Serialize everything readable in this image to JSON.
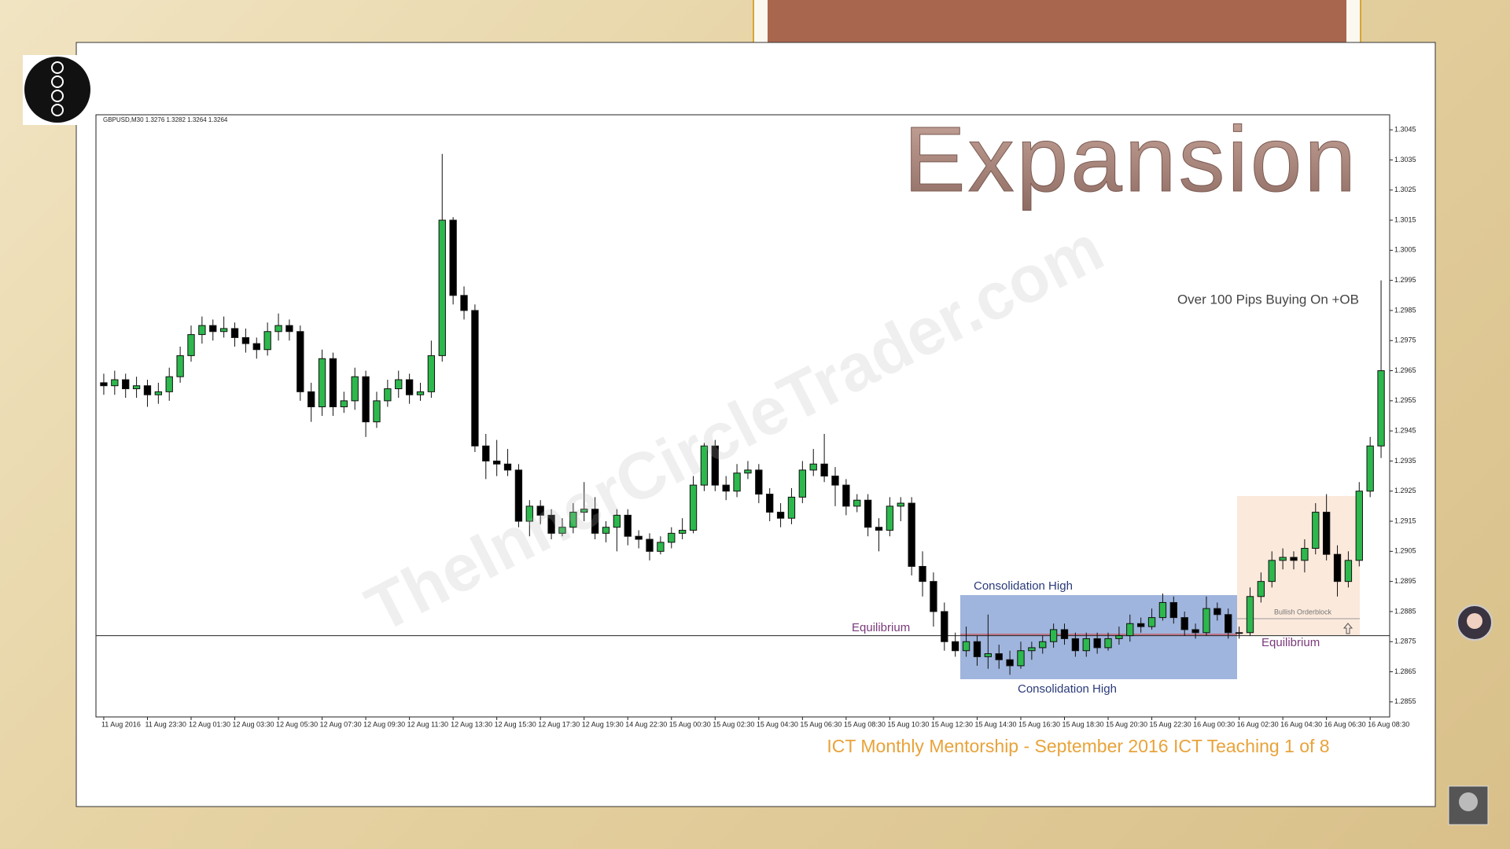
{
  "chart_data": {
    "type": "candlestick",
    "title": "Expansion",
    "symbol_info": "GBPUSD,M30  1.3276 1.3282 1.3264 1.3264",
    "note": "Over 100 Pips Buying On +OB",
    "watermark": "TheInnerCircleTrader.com",
    "caption": "ICT Monthly Mentorship - September 2016 ICT Teaching 1 of 8",
    "labels": {
      "equilibrium_left": "Equilibrium",
      "equilibrium_right": "Equilibrium",
      "consolidation_top": "Consolidation High",
      "consolidation_bottom": "Consolidation High",
      "orderblock": "Bullish Orderblock"
    },
    "equilibrium": 1.2877,
    "up_color": "#2db84d",
    "down_color": "#000000",
    "ylim": [
      1.285,
      1.305
    ],
    "yticks": [
      1.2855,
      1.2865,
      1.2875,
      1.2885,
      1.2895,
      1.2905,
      1.2915,
      1.2925,
      1.2935,
      1.2945,
      1.2955,
      1.2965,
      1.2975,
      1.2985,
      1.2995,
      1.3005,
      1.3015,
      1.3025,
      1.3035,
      1.3045
    ],
    "x_labels": [
      "11 Aug 2016",
      "11 Aug 23:30",
      "12 Aug 01:30",
      "12 Aug 03:30",
      "12 Aug 05:30",
      "12 Aug 07:30",
      "12 Aug 09:30",
      "12 Aug 11:30",
      "12 Aug 13:30",
      "12 Aug 15:30",
      "12 Aug 17:30",
      "12 Aug 19:30",
      "14 Aug 22:30",
      "15 Aug 00:30",
      "15 Aug 02:30",
      "15 Aug 04:30",
      "15 Aug 06:30",
      "15 Aug 08:30",
      "15 Aug 10:30",
      "15 Aug 12:30",
      "15 Aug 14:30",
      "15 Aug 16:30",
      "15 Aug 18:30",
      "15 Aug 20:30",
      "15 Aug 22:30",
      "16 Aug 00:30",
      "16 Aug 02:30",
      "16 Aug 04:30",
      "16 Aug 06:30",
      "16 Aug 08:30"
    ],
    "candles": [
      [
        1.2961,
        1.2964,
        1.2957,
        1.296
      ],
      [
        1.296,
        1.2965,
        1.2957,
        1.2962
      ],
      [
        1.2962,
        1.2964,
        1.2956,
        1.2959
      ],
      [
        1.2959,
        1.2963,
        1.2956,
        1.296
      ],
      [
        1.296,
        1.2962,
        1.2953,
        1.2957
      ],
      [
        1.2957,
        1.2961,
        1.2954,
        1.2958
      ],
      [
        1.2958,
        1.2966,
        1.2955,
        1.2963
      ],
      [
        1.2963,
        1.2973,
        1.2961,
        1.297
      ],
      [
        1.297,
        1.298,
        1.2968,
        1.2977
      ],
      [
        1.2977,
        1.2983,
        1.2974,
        1.298
      ],
      [
        1.298,
        1.2982,
        1.2975,
        1.2978
      ],
      [
        1.2978,
        1.2983,
        1.2976,
        1.2979
      ],
      [
        1.2979,
        1.2981,
        1.2973,
        1.2976
      ],
      [
        1.2976,
        1.2979,
        1.2971,
        1.2974
      ],
      [
        1.2974,
        1.2976,
        1.2969,
        1.2972
      ],
      [
        1.2972,
        1.2981,
        1.297,
        1.2978
      ],
      [
        1.2978,
        1.2984,
        1.2975,
        1.298
      ],
      [
        1.298,
        1.2982,
        1.2975,
        1.2978
      ],
      [
        1.2978,
        1.298,
        1.2955,
        1.2958
      ],
      [
        1.2958,
        1.2961,
        1.2948,
        1.2953
      ],
      [
        1.2953,
        1.2972,
        1.295,
        1.2969
      ],
      [
        1.2969,
        1.2971,
        1.295,
        1.2953
      ],
      [
        1.2953,
        1.2958,
        1.2951,
        1.2955
      ],
      [
        1.2955,
        1.2966,
        1.2952,
        1.2963
      ],
      [
        1.2963,
        1.2965,
        1.2943,
        1.2948
      ],
      [
        1.2948,
        1.2958,
        1.2946,
        1.2955
      ],
      [
        1.2955,
        1.2962,
        1.2953,
        1.2959
      ],
      [
        1.2959,
        1.2965,
        1.2956,
        1.2962
      ],
      [
        1.2962,
        1.2964,
        1.2954,
        1.2957
      ],
      [
        1.2957,
        1.2961,
        1.2955,
        1.2958
      ],
      [
        1.2958,
        1.2975,
        1.2956,
        1.297
      ],
      [
        1.297,
        1.3037,
        1.2968,
        1.3015
      ],
      [
        1.3015,
        1.3016,
        1.2987,
        1.299
      ],
      [
        1.299,
        1.2993,
        1.2982,
        1.2985
      ],
      [
        1.2985,
        1.2987,
        1.2938,
        1.294
      ],
      [
        1.294,
        1.2944,
        1.2929,
        1.2935
      ],
      [
        1.2935,
        1.2942,
        1.293,
        1.2934
      ],
      [
        1.2934,
        1.2939,
        1.293,
        1.2932
      ],
      [
        1.2932,
        1.2934,
        1.2913,
        1.2915
      ],
      [
        1.2915,
        1.2922,
        1.291,
        1.292
      ],
      [
        1.292,
        1.2922,
        1.2914,
        1.2917
      ],
      [
        1.2917,
        1.2919,
        1.2909,
        1.2911
      ],
      [
        1.2911,
        1.2916,
        1.291,
        1.2913
      ],
      [
        1.2913,
        1.2921,
        1.2911,
        1.2918
      ],
      [
        1.2918,
        1.2928,
        1.2915,
        1.2919
      ],
      [
        1.2919,
        1.2923,
        1.2909,
        1.2911
      ],
      [
        1.2911,
        1.2915,
        1.2908,
        1.2913
      ],
      [
        1.2913,
        1.2919,
        1.2905,
        1.2917
      ],
      [
        1.2917,
        1.2919,
        1.2907,
        1.291
      ],
      [
        1.291,
        1.2912,
        1.2906,
        1.2909
      ],
      [
        1.2909,
        1.2911,
        1.2902,
        1.2905
      ],
      [
        1.2905,
        1.291,
        1.2904,
        1.2908
      ],
      [
        1.2908,
        1.2913,
        1.2906,
        1.2911
      ],
      [
        1.2911,
        1.2916,
        1.2909,
        1.2912
      ],
      [
        1.2912,
        1.293,
        1.2911,
        1.2927
      ],
      [
        1.2927,
        1.2941,
        1.2925,
        1.294
      ],
      [
        1.294,
        1.2942,
        1.2925,
        1.2927
      ],
      [
        1.2927,
        1.293,
        1.2922,
        1.2925
      ],
      [
        1.2925,
        1.2934,
        1.2923,
        1.2931
      ],
      [
        1.2931,
        1.2935,
        1.2929,
        1.2932
      ],
      [
        1.2932,
        1.2934,
        1.2921,
        1.2924
      ],
      [
        1.2924,
        1.2926,
        1.2915,
        1.2918
      ],
      [
        1.2918,
        1.2921,
        1.2913,
        1.2916
      ],
      [
        1.2916,
        1.2926,
        1.2914,
        1.2923
      ],
      [
        1.2923,
        1.2935,
        1.2921,
        1.2932
      ],
      [
        1.2932,
        1.2939,
        1.293,
        1.2934
      ],
      [
        1.2934,
        1.2944,
        1.2928,
        1.293
      ],
      [
        1.293,
        1.2933,
        1.292,
        1.2927
      ],
      [
        1.2927,
        1.2929,
        1.2917,
        1.292
      ],
      [
        1.292,
        1.2924,
        1.2918,
        1.2922
      ],
      [
        1.2922,
        1.2924,
        1.291,
        1.2913
      ],
      [
        1.2913,
        1.2916,
        1.2905,
        1.2912
      ],
      [
        1.2912,
        1.2923,
        1.291,
        1.292
      ],
      [
        1.292,
        1.2923,
        1.2915,
        1.2921
      ],
      [
        1.2921,
        1.2923,
        1.2897,
        1.29
      ],
      [
        1.29,
        1.2905,
        1.289,
        1.2895
      ],
      [
        1.2895,
        1.2898,
        1.288,
        1.2885
      ],
      [
        1.2885,
        1.2888,
        1.2872,
        1.2875
      ],
      [
        1.2875,
        1.2878,
        1.287,
        1.2872
      ],
      [
        1.2872,
        1.288,
        1.287,
        1.2875
      ],
      [
        1.2875,
        1.2877,
        1.2867,
        1.287
      ],
      [
        1.287,
        1.2884,
        1.2866,
        1.2871
      ],
      [
        1.2871,
        1.2874,
        1.2866,
        1.2869
      ],
      [
        1.2869,
        1.2872,
        1.2864,
        1.2867
      ],
      [
        1.2867,
        1.2875,
        1.2866,
        1.2872
      ],
      [
        1.2872,
        1.2875,
        1.2869,
        1.2873
      ],
      [
        1.2873,
        1.2877,
        1.2871,
        1.2875
      ],
      [
        1.2875,
        1.2881,
        1.2873,
        1.2879
      ],
      [
        1.2879,
        1.2881,
        1.2874,
        1.2876
      ],
      [
        1.2876,
        1.2878,
        1.287,
        1.2872
      ],
      [
        1.2872,
        1.2878,
        1.287,
        1.2876
      ],
      [
        1.2876,
        1.2878,
        1.2871,
        1.2873
      ],
      [
        1.2873,
        1.2878,
        1.2872,
        1.2876
      ],
      [
        1.2876,
        1.288,
        1.2874,
        1.2877
      ],
      [
        1.2877,
        1.2884,
        1.2875,
        1.2881
      ],
      [
        1.2881,
        1.2883,
        1.2878,
        1.288
      ],
      [
        1.288,
        1.2886,
        1.2879,
        1.2883
      ],
      [
        1.2883,
        1.2891,
        1.2882,
        1.2888
      ],
      [
        1.2888,
        1.289,
        1.2881,
        1.2883
      ],
      [
        1.2883,
        1.2885,
        1.2877,
        1.2879
      ],
      [
        1.2879,
        1.2881,
        1.2876,
        1.2878
      ],
      [
        1.2878,
        1.289,
        1.2877,
        1.2886
      ],
      [
        1.2886,
        1.2888,
        1.2882,
        1.2884
      ],
      [
        1.2884,
        1.2886,
        1.2876,
        1.2878
      ],
      [
        1.2878,
        1.288,
        1.2876,
        1.2878
      ],
      [
        1.2878,
        1.2893,
        1.2877,
        1.289
      ],
      [
        1.289,
        1.2898,
        1.2888,
        1.2895
      ],
      [
        1.2895,
        1.2905,
        1.2893,
        1.2902
      ],
      [
        1.2902,
        1.2906,
        1.2899,
        1.2903
      ],
      [
        1.2903,
        1.2905,
        1.2899,
        1.2902
      ],
      [
        1.2902,
        1.2909,
        1.2898,
        1.2906
      ],
      [
        1.2906,
        1.2921,
        1.2904,
        1.2918
      ],
      [
        1.2918,
        1.2924,
        1.2902,
        1.2904
      ],
      [
        1.2904,
        1.2907,
        1.289,
        1.2895
      ],
      [
        1.2895,
        1.2905,
        1.2893,
        1.2902
      ],
      [
        1.2902,
        1.2928,
        1.29,
        1.2925
      ],
      [
        1.2925,
        1.2943,
        1.2923,
        1.294
      ],
      [
        1.294,
        1.2995,
        1.2936,
        1.2965
      ]
    ]
  }
}
